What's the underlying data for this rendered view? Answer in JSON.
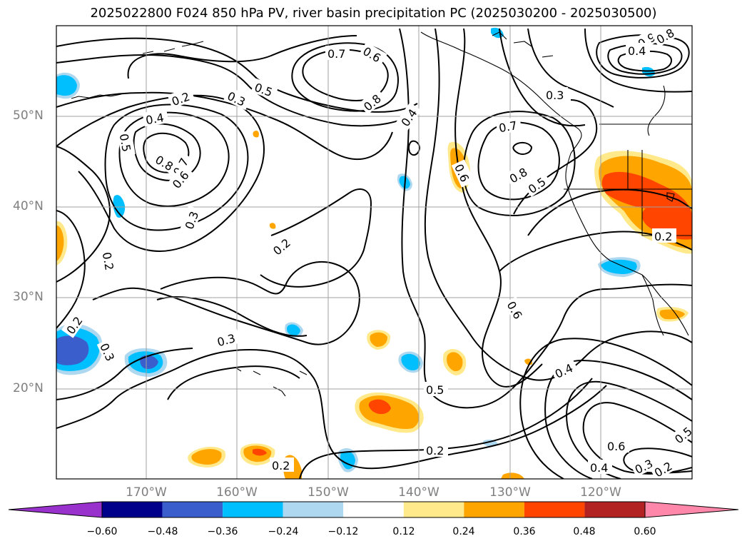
{
  "title": "2025022800 F024 850 hPa PV, river basin precipitation PC (2025030200 - 2025030500)",
  "lat_labels": [
    "50°N",
    "40°N",
    "30°N",
    "20°N"
  ],
  "lon_labels": [
    "170°W",
    "160°W",
    "150°W",
    "140°W",
    "130°W",
    "120°W"
  ],
  "colorbar": {
    "ticks": [
      "−0.60",
      "−0.48",
      "−0.36",
      "−0.24",
      "−0.12",
      "0.12",
      "0.24",
      "0.36",
      "0.48",
      "0.60"
    ],
    "colors": [
      "#9932cc",
      "#00008b",
      "#3a5fcd",
      "#00bfff",
      "#add8f0",
      "#ffffff",
      "#ffe98a",
      "#ffa500",
      "#ff4500",
      "#b22222",
      "#ff88aa"
    ],
    "extend": "both"
  },
  "contour_labels": [
    "0.7",
    "0.6",
    "0.5",
    "0.8",
    "0.2",
    "0.3",
    "0.4",
    "0.5",
    "0.8",
    "0.7",
    "0.6",
    "0.3",
    "0.2",
    "0.2",
    "0.4",
    "0.7",
    "0.6",
    "0.8",
    "0.5",
    "0.3",
    "0.6",
    "0.4",
    "0.5",
    "0.2",
    "0.3",
    "0.2",
    "0.3",
    "0.2",
    "0.6",
    "0.4",
    "0.3",
    "0.2",
    "0.5",
    "0.9",
    "0.8",
    "0.4",
    "0.2"
  ],
  "map": {
    "contour_variable": "850 hPa PV",
    "shading_variable": "river basin precipitation PC",
    "extent": {
      "lon": [
        "180°W",
        "110°W"
      ],
      "lat": [
        "10°N",
        "60°N"
      ]
    }
  }
}
